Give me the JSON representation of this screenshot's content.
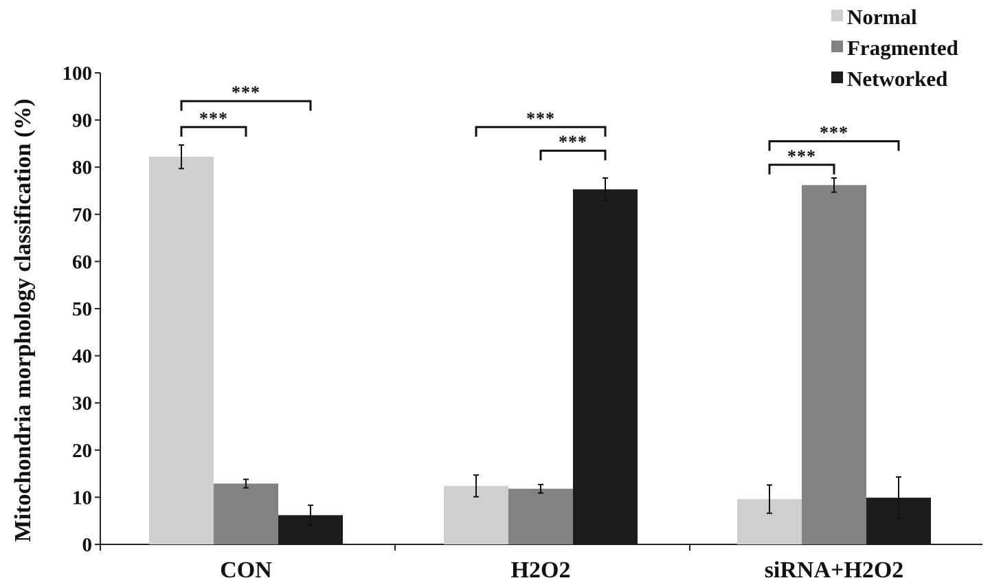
{
  "chart_data": {
    "type": "bar",
    "title": "",
    "xlabel": "",
    "ylabel": "Mitochondria morphology classification (%)",
    "ylim": [
      0,
      100
    ],
    "yticks": [
      0,
      10,
      20,
      30,
      40,
      50,
      60,
      70,
      80,
      90,
      100
    ],
    "categories": [
      "CON",
      "H2O2",
      "siRNA+H2O2"
    ],
    "series": [
      {
        "name": "Normal",
        "color": "#cfcfcf",
        "values": [
          82.2,
          12.4,
          9.6
        ],
        "errors": [
          2.5,
          2.3,
          3.0
        ]
      },
      {
        "name": "Fragmented",
        "color": "#828282",
        "values": [
          12.9,
          11.8,
          76.2
        ],
        "errors": [
          0.9,
          0.9,
          1.5
        ]
      },
      {
        "name": "Networked",
        "color": "#1c1c1c",
        "values": [
          6.2,
          75.3,
          9.9
        ],
        "errors": [
          2.1,
          2.4,
          4.4
        ]
      }
    ],
    "legend_position": "top-right",
    "grid": false,
    "significance": [
      {
        "category": 0,
        "from": 0,
        "to": 1,
        "label": "***",
        "y": 88.5
      },
      {
        "category": 0,
        "from": 0,
        "to": 2,
        "label": "***",
        "y": 94
      },
      {
        "category": 1,
        "from": 0,
        "to": 2,
        "label": "***",
        "y": 88.5
      },
      {
        "category": 1,
        "from": 1,
        "to": 2,
        "label": "***",
        "y": 83.5
      },
      {
        "category": 2,
        "from": 0,
        "to": 1,
        "label": "***",
        "y": 80.5
      },
      {
        "category": 2,
        "from": 0,
        "to": 2,
        "label": "***",
        "y": 85.5
      }
    ]
  }
}
